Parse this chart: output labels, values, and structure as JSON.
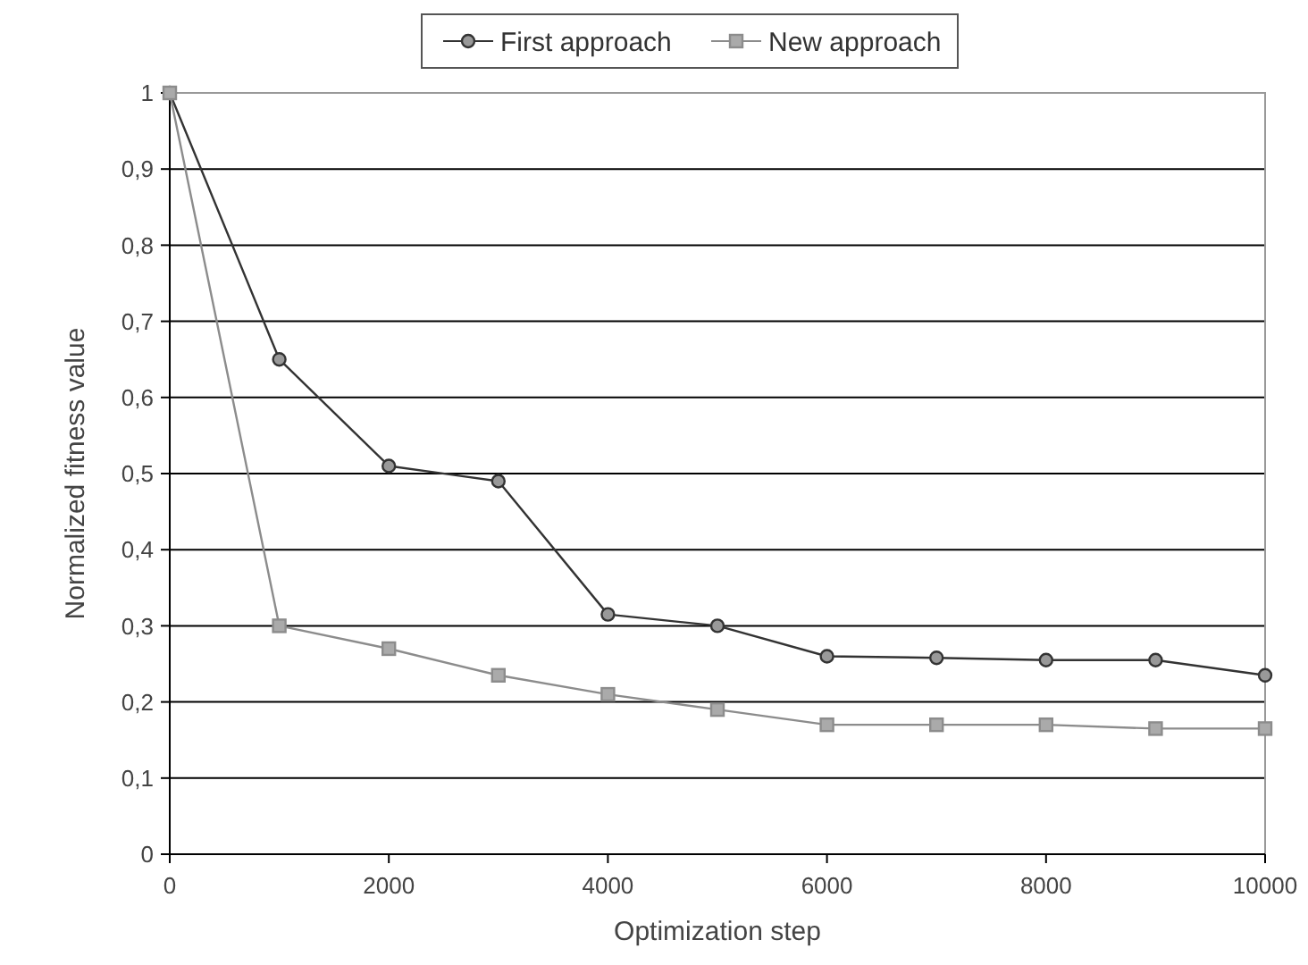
{
  "chart_data": {
    "type": "line",
    "xlabel": "Optimization step",
    "ylabel": "Normalized fitness value",
    "x": [
      0,
      1000,
      2000,
      3000,
      4000,
      5000,
      6000,
      7000,
      8000,
      9000,
      10000
    ],
    "series": [
      {
        "name": "First approach",
        "color": "#333333",
        "marker": "circle",
        "values": [
          1,
          0.65,
          0.51,
          0.49,
          0.315,
          0.3,
          0.26,
          0.258,
          0.255,
          0.255,
          0.235
        ]
      },
      {
        "name": "New approach",
        "color": "#8c8c8c",
        "marker": "square",
        "values": [
          1,
          0.3,
          0.27,
          0.235,
          0.21,
          0.19,
          0.17,
          0.17,
          0.17,
          0.165,
          0.165
        ]
      }
    ],
    "xlim": [
      0,
      10000
    ],
    "xticks": [
      0,
      2000,
      4000,
      6000,
      8000,
      10000
    ],
    "ylim": [
      0,
      1
    ],
    "yticks": [
      0,
      {
        "value": 0.1,
        "label": "0,1"
      },
      {
        "value": 0.2,
        "label": "0,2"
      },
      {
        "value": 0.3,
        "label": "0,3"
      },
      {
        "value": 0.4,
        "label": "0,4"
      },
      {
        "value": 0.5,
        "label": "0,5"
      },
      {
        "value": 0.6,
        "label": "0,6"
      },
      {
        "value": 0.7,
        "label": "0,7"
      },
      {
        "value": 0.8,
        "label": "0,8"
      },
      {
        "value": 0.9,
        "label": "0,9"
      },
      1
    ],
    "grid": "y",
    "legend": "top"
  }
}
